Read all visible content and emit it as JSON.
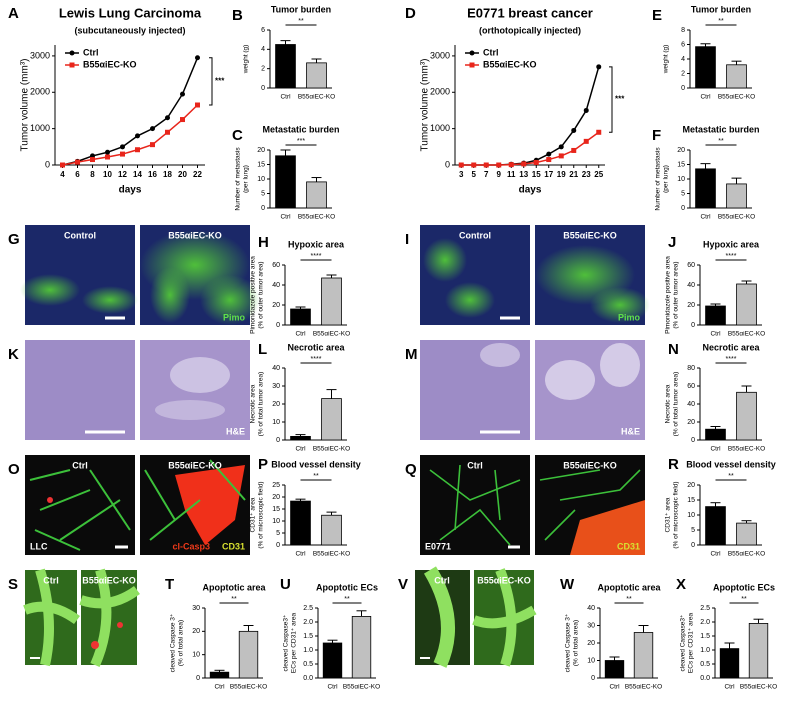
{
  "chart_data": [
    {
      "panel": "A",
      "type": "line",
      "title": "Lewis Lung Carcinoma",
      "subtitle": "(subcutaneously injected)",
      "xlabel": "days",
      "ylabel": [
        "Tumor volume (mm³)"
      ],
      "x": [
        4,
        6,
        8,
        10,
        12,
        14,
        16,
        18,
        20,
        22
      ],
      "xlim": [
        3,
        23
      ],
      "xticks": [
        4,
        6,
        8,
        10,
        12,
        14,
        16,
        18,
        20,
        22
      ],
      "ylim": [
        0,
        3300
      ],
      "yticks": [
        0,
        1000,
        2000,
        3000
      ],
      "series": [
        {
          "name": "Ctrl",
          "color": "#000000",
          "values": [
            0,
            100,
            250,
            350,
            500,
            800,
            1000,
            1300,
            1950,
            2950
          ]
        },
        {
          "name": "B55αiEC-KO",
          "color": "#e8251b",
          "values": [
            0,
            80,
            150,
            220,
            300,
            420,
            560,
            900,
            1250,
            1650
          ]
        }
      ],
      "significance": "***"
    },
    {
      "panel": "B",
      "type": "bar",
      "title": "Tumor burden",
      "ylabel": [
        "weight (g)"
      ],
      "categories": [
        "Ctrl",
        "B55αiEC-KO"
      ],
      "values": [
        4.5,
        2.6
      ],
      "errors": [
        0.4,
        0.4
      ],
      "colors": [
        "#000000",
        "#c0c0c0"
      ],
      "ylim": [
        0,
        6
      ],
      "yticks": [
        0,
        2,
        4,
        6
      ],
      "significance": "**"
    },
    {
      "panel": "C",
      "type": "bar",
      "title": "Metastatic burden",
      "ylabel": [
        "Number of metastasis",
        "(per lung)"
      ],
      "categories": [
        "Ctrl",
        "B55αiEC-KO"
      ],
      "values": [
        18,
        9
      ],
      "errors": [
        2,
        1.5
      ],
      "colors": [
        "#000000",
        "#c0c0c0"
      ],
      "ylim": [
        0,
        20
      ],
      "yticks": [
        0,
        5,
        10,
        15,
        20
      ],
      "significance": "***"
    },
    {
      "panel": "D",
      "type": "line",
      "title": "E0771 breast cancer",
      "subtitle": "(orthotopically injected)",
      "xlabel": "days",
      "ylabel": [
        "Tumor volume (mm³)"
      ],
      "x": [
        3,
        5,
        7,
        9,
        11,
        13,
        15,
        17,
        19,
        21,
        23,
        25
      ],
      "xlim": [
        2,
        26
      ],
      "xticks": [
        3,
        5,
        7,
        9,
        11,
        13,
        15,
        17,
        19,
        21,
        23,
        25
      ],
      "ylim": [
        0,
        3300
      ],
      "yticks": [
        0,
        1000,
        2000,
        3000
      ],
      "series": [
        {
          "name": "Ctrl",
          "color": "#000000",
          "values": [
            0,
            0,
            0,
            0,
            20,
            50,
            130,
            300,
            500,
            950,
            1500,
            2700
          ]
        },
        {
          "name": "B55αiEC-KO",
          "color": "#e8251b",
          "values": [
            0,
            0,
            0,
            0,
            10,
            30,
            70,
            150,
            250,
            400,
            650,
            900
          ]
        }
      ],
      "significance": "***"
    },
    {
      "panel": "E",
      "type": "bar",
      "title": "Tumor burden",
      "ylabel": [
        "weight (g)"
      ],
      "categories": [
        "Ctrl",
        "B55αiEC-KO"
      ],
      "values": [
        5.7,
        3.2
      ],
      "errors": [
        0.4,
        0.5
      ],
      "colors": [
        "#000000",
        "#c0c0c0"
      ],
      "ylim": [
        0,
        8
      ],
      "yticks": [
        0,
        2,
        4,
        6,
        8
      ],
      "significance": "**"
    },
    {
      "panel": "F",
      "type": "bar",
      "title": "Metastatic burden",
      "ylabel": [
        "Number of metastasis",
        "(per lung)"
      ],
      "categories": [
        "Ctrl",
        "B55αiEC-KO"
      ],
      "values": [
        13.5,
        8.3
      ],
      "errors": [
        1.8,
        2
      ],
      "colors": [
        "#000000",
        "#c0c0c0"
      ],
      "ylim": [
        0,
        20
      ],
      "yticks": [
        0,
        5,
        10,
        15,
        20
      ],
      "significance": "**"
    },
    {
      "panel": "H",
      "type": "bar",
      "title": "Hypoxic area",
      "ylabel": [
        "Pimonidazole positive area",
        "(% of outer tumor area)"
      ],
      "categories": [
        "Ctrl",
        "B55αiEC-KO"
      ],
      "values": [
        16,
        47
      ],
      "errors": [
        2,
        3
      ],
      "colors": [
        "#000000",
        "#c0c0c0"
      ],
      "ylim": [
        0,
        60
      ],
      "yticks": [
        0,
        20,
        40,
        60
      ],
      "significance": "****"
    },
    {
      "panel": "J",
      "type": "bar",
      "title": "Hypoxic area",
      "ylabel": [
        "Pimonidazole positive area",
        "(% of outer tumor area)"
      ],
      "categories": [
        "Ctrl",
        "B55αiEC-KO"
      ],
      "values": [
        19,
        41
      ],
      "errors": [
        2,
        3
      ],
      "colors": [
        "#000000",
        "#c0c0c0"
      ],
      "ylim": [
        0,
        60
      ],
      "yticks": [
        0,
        20,
        40,
        60
      ],
      "significance": "****"
    },
    {
      "panel": "L",
      "type": "bar",
      "title": "Necrotic area",
      "ylabel": [
        "Necrotic area",
        "(% of total tumor area)"
      ],
      "categories": [
        "Ctrl",
        "B55αiEC-KO"
      ],
      "values": [
        2,
        23
      ],
      "errors": [
        1,
        5
      ],
      "colors": [
        "#000000",
        "#c0c0c0"
      ],
      "ylim": [
        0,
        40
      ],
      "yticks": [
        0,
        10,
        20,
        30,
        40
      ],
      "significance": "****"
    },
    {
      "panel": "N",
      "type": "bar",
      "title": "Necrotic area",
      "ylabel": [
        "Necrotic area",
        "(% of total tumor area)"
      ],
      "categories": [
        "Ctrl",
        "B55αiEC-KO"
      ],
      "values": [
        12,
        53
      ],
      "errors": [
        3,
        7
      ],
      "colors": [
        "#000000",
        "#c0c0c0"
      ],
      "ylim": [
        0,
        80
      ],
      "yticks": [
        0,
        20,
        40,
        60,
        80
      ],
      "significance": "****"
    },
    {
      "panel": "P",
      "type": "bar",
      "title": "Blood vessel density",
      "ylabel": [
        "CD31⁺ area",
        "(% of microscopic field)"
      ],
      "categories": [
        "Ctrl",
        "B55αiEC-KO"
      ],
      "values": [
        18.3,
        12.4
      ],
      "errors": [
        0.8,
        1.3
      ],
      "colors": [
        "#000000",
        "#c0c0c0"
      ],
      "ylim": [
        0,
        25
      ],
      "yticks": [
        0,
        5,
        10,
        15,
        20,
        25
      ],
      "significance": "**"
    },
    {
      "panel": "R",
      "type": "bar",
      "title": "Blood vessel density",
      "ylabel": [
        "CD31⁺ area",
        "(% of microscopic field)"
      ],
      "categories": [
        "Ctrl",
        "B55αiEC-KO"
      ],
      "values": [
        12.8,
        7.3
      ],
      "errors": [
        1.3,
        0.8
      ],
      "colors": [
        "#000000",
        "#c0c0c0"
      ],
      "ylim": [
        0,
        20
      ],
      "yticks": [
        0,
        5,
        10,
        15,
        20
      ],
      "significance": "**"
    },
    {
      "panel": "T",
      "type": "bar",
      "title": "Apoptotic area",
      "ylabel": [
        "cleaved Caspase 3⁺",
        "(% of total area)"
      ],
      "categories": [
        "Ctrl",
        "B55αiEC-KO"
      ],
      "values": [
        2.5,
        20
      ],
      "errors": [
        0.8,
        2.5
      ],
      "colors": [
        "#000000",
        "#c0c0c0"
      ],
      "ylim": [
        0,
        30
      ],
      "yticks": [
        0,
        10,
        20,
        30
      ],
      "significance": "**"
    },
    {
      "panel": "U",
      "type": "bar",
      "title": "Apoptotic ECs",
      "ylabel": [
        "cleaved Caspase3⁺",
        "ECs per CD31⁺ area"
      ],
      "categories": [
        "Ctrl",
        "B55αiEC-KO"
      ],
      "values": [
        1.25,
        2.2
      ],
      "errors": [
        0.1,
        0.2
      ],
      "colors": [
        "#000000",
        "#c0c0c0"
      ],
      "ylim": [
        0,
        2.5
      ],
      "yticks": [
        {
          "value": 0,
          "label": "0.0"
        },
        0.5,
        {
          "value": 1,
          "label": "1.0"
        },
        1.5,
        {
          "value": 2,
          "label": "2.0"
        },
        2.5
      ],
      "significance": "**"
    },
    {
      "panel": "W",
      "type": "bar",
      "title": "Apoptotic area",
      "ylabel": [
        "cleaved Caspase 3⁺",
        "(% of total area)"
      ],
      "categories": [
        "Ctrl",
        "B55αiEC-KO"
      ],
      "values": [
        10,
        26
      ],
      "errors": [
        2,
        4
      ],
      "colors": [
        "#000000",
        "#c0c0c0"
      ],
      "ylim": [
        0,
        40
      ],
      "yticks": [
        0,
        10,
        20,
        30,
        40
      ],
      "significance": "**"
    },
    {
      "panel": "X",
      "type": "bar",
      "title": "Apoptotic ECs",
      "ylabel": [
        "cleaved Caspase3⁺",
        "ECs per CD31⁺ area"
      ],
      "categories": [
        "Ctrl",
        "B55αiEC-KO"
      ],
      "values": [
        1.05,
        1.95
      ],
      "errors": [
        0.2,
        0.15
      ],
      "colors": [
        "#000000",
        "#c0c0c0"
      ],
      "ylim": [
        0,
        2.5
      ],
      "yticks": [
        {
          "value": 0,
          "label": "0.0"
        },
        0.5,
        {
          "value": 1,
          "label": "1.0"
        },
        1.5,
        {
          "value": 2,
          "label": "2.0"
        },
        2.5
      ],
      "significance": "**"
    }
  ],
  "images": [
    {
      "panel": "G",
      "left": "Control",
      "right": "B55αiEC-KO",
      "stain": [
        "Pimo"
      ]
    },
    {
      "panel": "I",
      "left": "Control",
      "right": "B55αiEC-KO",
      "stain": [
        "Pimo"
      ]
    },
    {
      "panel": "K",
      "stain": [
        "H&E"
      ]
    },
    {
      "panel": "M",
      "stain": [
        "H&E"
      ]
    },
    {
      "panel": "O",
      "left": "Ctrl",
      "right": "B55αiEC-KO",
      "corner": "LLC",
      "stain": [
        "cl-Casp3",
        "CD31"
      ]
    },
    {
      "panel": "Q",
      "left": "Ctrl",
      "right": "B55αiEC-KO",
      "corner": "E0771",
      "stain": [
        "CD31"
      ]
    },
    {
      "panel": "S",
      "left": "Ctrl",
      "right": "B55αiEC-KO"
    },
    {
      "panel": "V",
      "left": "Ctrl",
      "right": "B55αiEC-KO"
    }
  ]
}
